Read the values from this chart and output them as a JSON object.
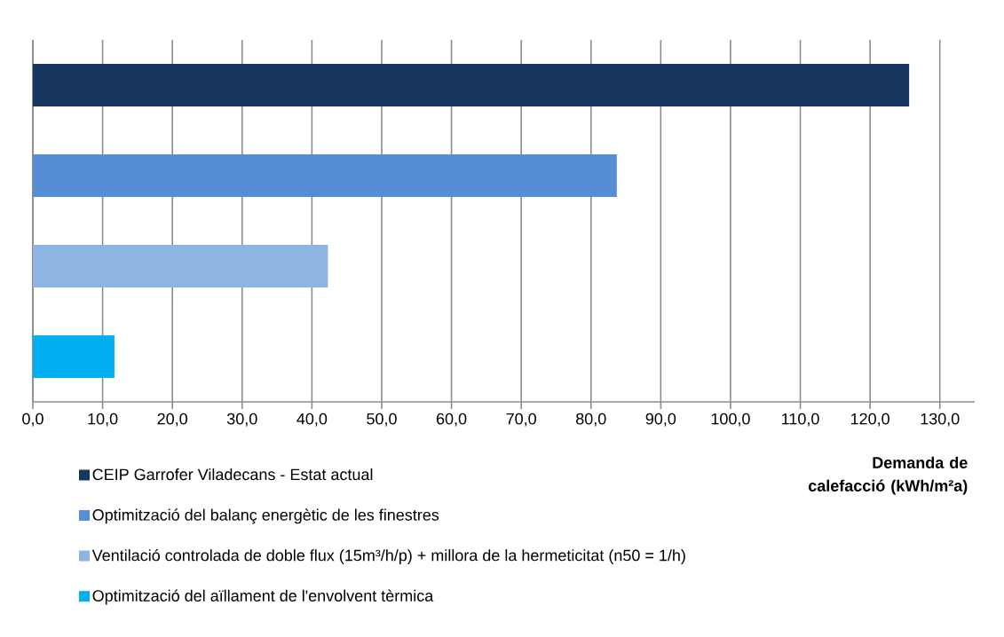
{
  "chart_data": {
    "type": "bar",
    "orientation": "horizontal",
    "categories": [
      null
    ],
    "series": [
      {
        "name": "CEIP Garrofer Viladecans - Estat actual",
        "color": "#18375f",
        "values": [
          125.6
        ]
      },
      {
        "name": "Optimització del balanç energètic de les finestres",
        "color": "#558ed5",
        "values": [
          83.7
        ]
      },
      {
        "name": "Ventilació controlada de doble flux (15m³/h/p) + millora de la hermeticitat (n50 = 1/h)",
        "color": "#8eb4e3",
        "values": [
          42.3
        ]
      },
      {
        "name": "Optimització del aïllament de l'envolvent tèrmica",
        "color": "#00b0f0",
        "values": [
          11.7
        ]
      }
    ],
    "xlabel": "Demanda de calefacció (kWh/m²a)",
    "xlim": [
      0,
      135
    ],
    "xticks": [
      {
        "value": 0,
        "label": "0,0"
      },
      {
        "value": 10,
        "label": "10,0"
      },
      {
        "value": 20,
        "label": "20,0"
      },
      {
        "value": 30,
        "label": "30,0"
      },
      {
        "value": 40,
        "label": "40,0"
      },
      {
        "value": 50,
        "label": "50,0"
      },
      {
        "value": 60,
        "label": "60,0"
      },
      {
        "value": 70,
        "label": "70,0"
      },
      {
        "value": 80,
        "label": "80,0"
      },
      {
        "value": 90,
        "label": "90,0"
      },
      {
        "value": 100,
        "label": "100,0"
      },
      {
        "value": 110,
        "label": "110,0"
      },
      {
        "value": 120,
        "label": "120,0"
      },
      {
        "value": 130,
        "label": "130,0"
      }
    ],
    "grid": "x",
    "legend": "bottom"
  }
}
